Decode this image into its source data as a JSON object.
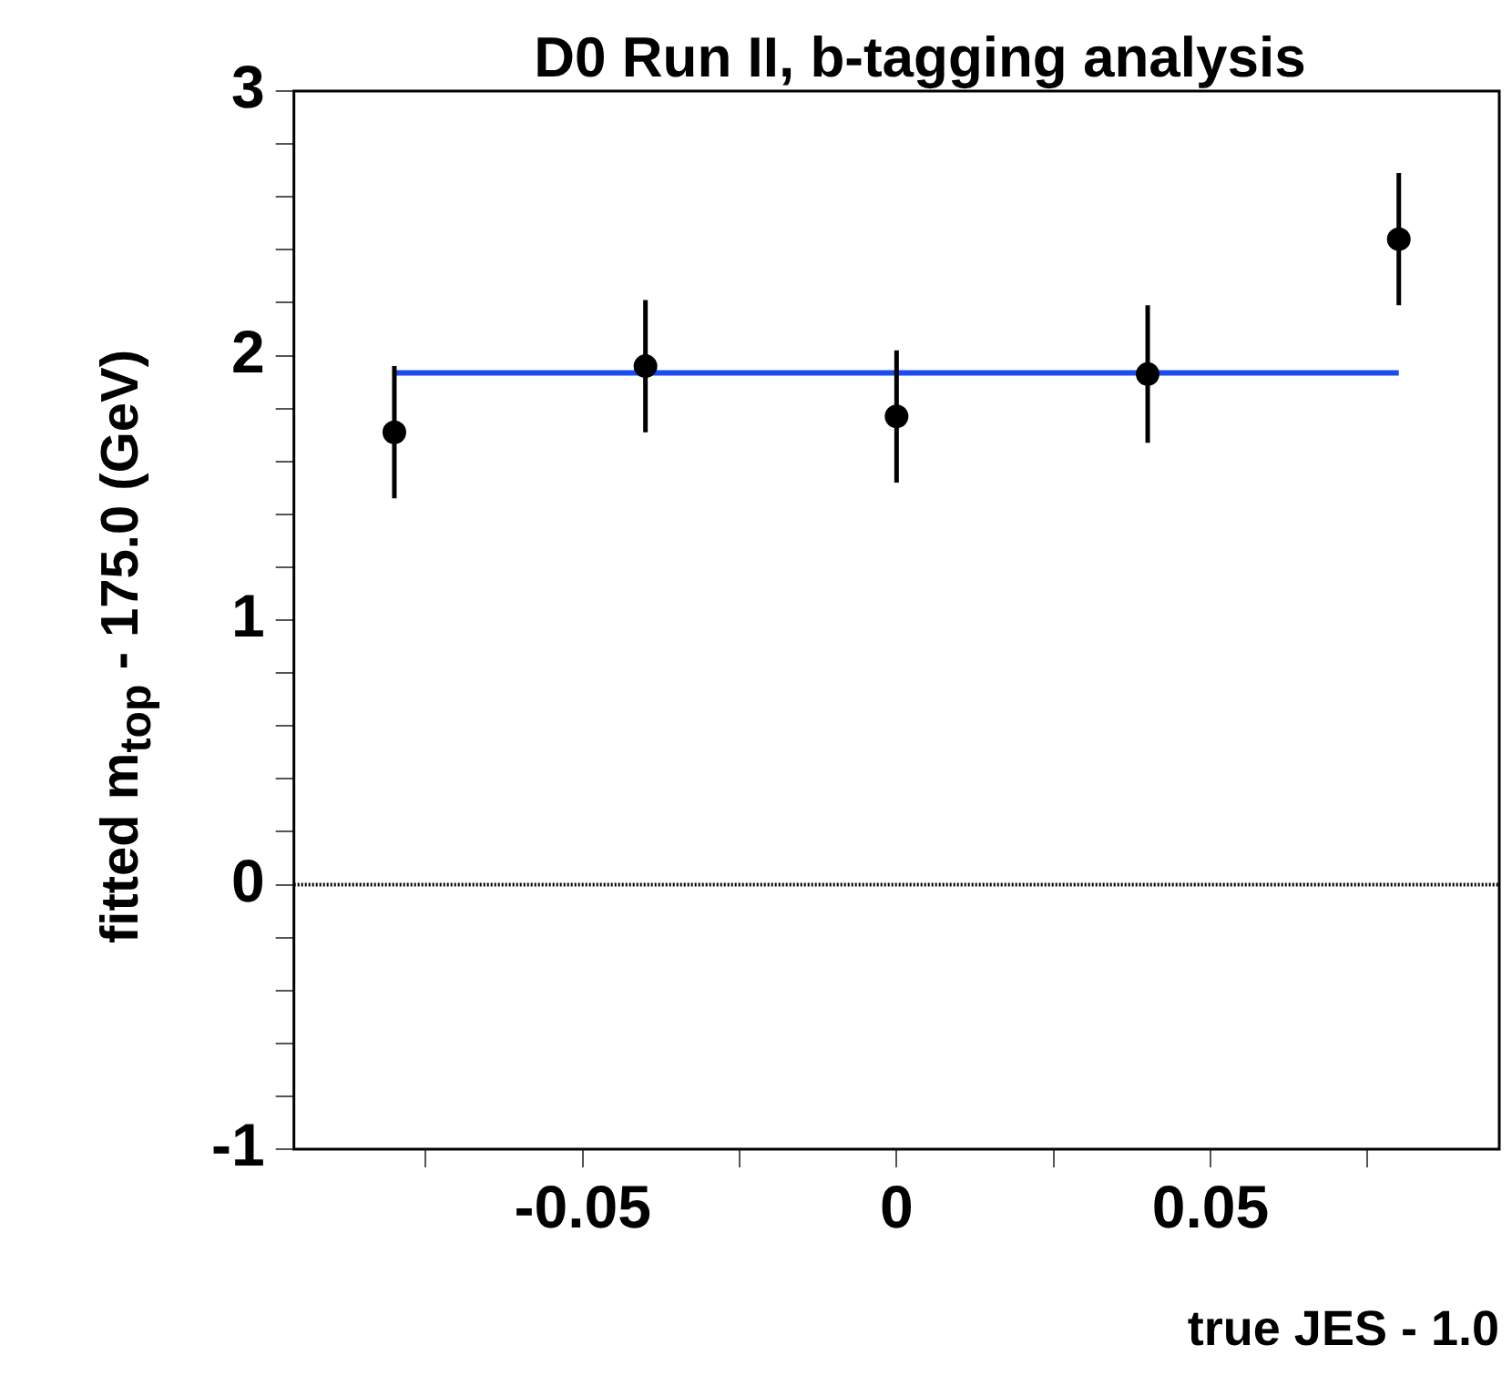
{
  "chart_data": {
    "type": "scatter",
    "title": "D0 Run II, b-tagging analysis",
    "xlabel": "true JES - 1.0",
    "ylabel": "fitted m$_{top}$ - 175.0 (GeV)",
    "x": [
      -0.08,
      -0.04,
      0,
      0.04,
      0.08
    ],
    "series": [
      {
        "color": "#000000",
        "values": [
          1.71,
          1.96,
          1.77,
          1.93,
          2.44
        ],
        "errors": [
          0.25,
          0.25,
          0.25,
          0.26,
          0.25
        ],
        "marker": "circle"
      },
      {
        "type": "line",
        "color": "#1a4cf0",
        "x": [
          -0.08,
          0.08
        ],
        "values": [
          1.935,
          1.935
        ],
        "marker": "none"
      }
    ],
    "xlim": [
      -0.096,
      0.096
    ],
    "xticks": [
      {
        "value": -0.075,
        "label": null
      },
      {
        "value": -0.05,
        "label": "-0.05"
      },
      {
        "value": -0.025,
        "label": null
      },
      0,
      {
        "value": 0.025,
        "label": null
      },
      {
        "value": 0.05,
        "label": "0.05"
      },
      {
        "value": 0.075,
        "label": null
      }
    ],
    "ylim": [
      -1,
      3
    ],
    "yticks": [
      -1,
      {
        "value": -0.8,
        "label": null
      },
      {
        "value": -0.6,
        "label": null
      },
      {
        "value": -0.4,
        "label": null
      },
      {
        "value": -0.2,
        "label": null
      },
      0,
      {
        "value": 0.2,
        "label": null
      },
      {
        "value": 0.4,
        "label": null
      },
      {
        "value": 0.6,
        "label": null
      },
      {
        "value": 0.8,
        "label": null
      },
      1,
      {
        "value": 1.2,
        "label": null
      },
      {
        "value": 1.4,
        "label": null
      },
      {
        "value": 1.6,
        "label": null
      },
      {
        "value": 1.8,
        "label": null
      },
      2,
      {
        "value": 2.2,
        "label": null
      },
      {
        "value": 2.4,
        "label": null
      },
      {
        "value": 2.6,
        "label": null
      },
      {
        "value": 2.8,
        "label": null
      },
      3
    ],
    "ref_lines": [
      {
        "axis": "y",
        "value": 0,
        "color": "#000000",
        "line_style": "dotted"
      }
    ],
    "grid": false,
    "legend": false
  }
}
